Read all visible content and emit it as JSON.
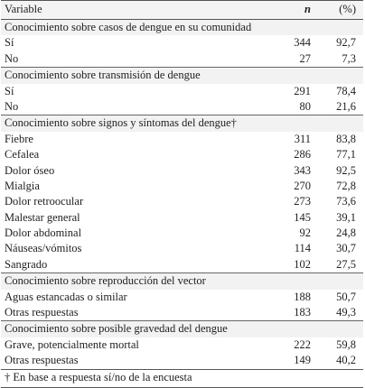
{
  "header": {
    "variable": "Variable",
    "n": "n",
    "pct": "(%)"
  },
  "sections": [
    {
      "title": "Conocimiento sobre casos de dengue en su comunidad",
      "rows": [
        [
          "Sí",
          "344",
          "92,7"
        ],
        [
          "No",
          "27",
          "7,3"
        ]
      ]
    },
    {
      "title": "Conocimiento sobre transmisión de dengue",
      "rows": [
        [
          "Sí",
          "291",
          "78,4"
        ],
        [
          "No",
          "80",
          "21,6"
        ]
      ]
    },
    {
      "title": "Conocimiento sobre signos y síntomas del dengue†",
      "rows": [
        [
          "Fiebre",
          "311",
          "83,8"
        ],
        [
          "Cefalea",
          "286",
          "77,1"
        ],
        [
          "Dolor óseo",
          "343",
          "92,5"
        ],
        [
          "Mialgia",
          "270",
          "72,8"
        ],
        [
          "Dolor retroocular",
          "273",
          "73,6"
        ],
        [
          "Malestar general",
          "145",
          "39,1"
        ],
        [
          "Dolor abdominal",
          "92",
          "24,8"
        ],
        [
          "Náuseas/vómitos",
          "114",
          "30,7"
        ],
        [
          "Sangrado",
          "102",
          "27,5"
        ]
      ]
    },
    {
      "title": "Conocimiento sobre reproducción del vector",
      "rows": [
        [
          "Aguas estancadas o similar",
          "188",
          "50,7"
        ],
        [
          "Otras respuestas",
          "183",
          "49,3"
        ]
      ]
    },
    {
      "title": "Conocimiento sobre posible gravedad del dengue",
      "rows": [
        [
          "Grave, potencialmente mortal",
          "222",
          "59,8"
        ],
        [
          "Otras respuestas",
          "149",
          "40,2"
        ]
      ]
    }
  ],
  "footnote": "† En base a respuesta sí/no de la encuesta"
}
